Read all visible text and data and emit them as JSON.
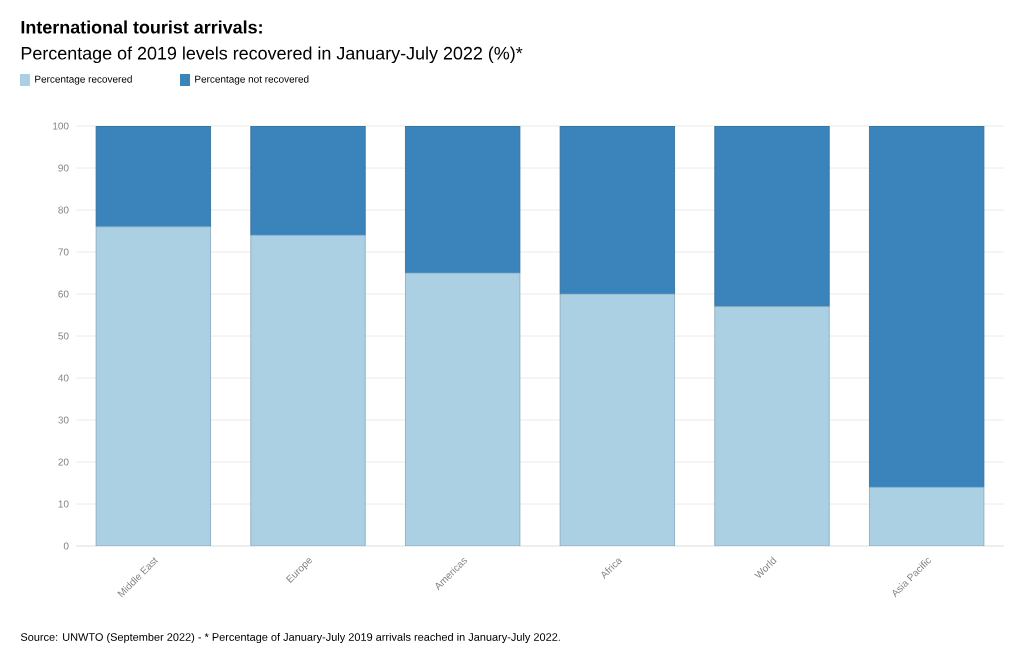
{
  "chart_data": {
    "type": "bar",
    "stacked": true,
    "title": "International tourist arrivals:",
    "subtitle": "Percentage of 2019 levels recovered in January-July 2022 (%)*",
    "categories": [
      "Middle East",
      "Europe",
      "Americas",
      "Africa",
      "World",
      "Asia Pacific"
    ],
    "series": [
      {
        "name": "Percentage recovered",
        "color": "#abd0e3",
        "values": [
          76,
          74,
          65,
          60,
          57,
          14
        ]
      },
      {
        "name": "Percentage not recovered",
        "color": "#3b84bb",
        "values": [
          24,
          26,
          35,
          40,
          43,
          86
        ]
      }
    ],
    "ylim": [
      0,
      100
    ],
    "yticks": [
      0,
      10,
      20,
      30,
      40,
      50,
      60,
      70,
      80,
      90,
      100
    ],
    "grid": "y",
    "legend": "top left",
    "annotations": [
      "Source: UNWTO (September 2022) - * Percentage of January-July 2019 arrivals reached in January-July 2022."
    ]
  }
}
